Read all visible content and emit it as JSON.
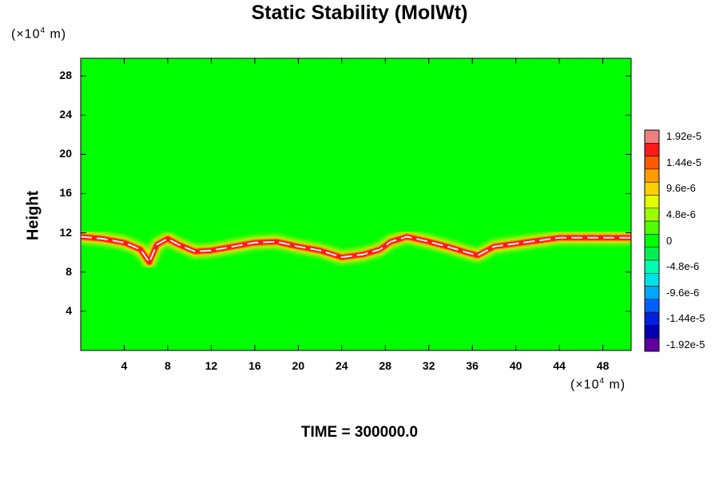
{
  "chart_data": {
    "type": "heatmap",
    "title": "Static Stability (MolWt)",
    "ylabel": "Height",
    "y_unit_prefix": "(×10",
    "y_unit_exp": "4",
    "y_unit_suffix": " m)",
    "x_unit_prefix": "(×10",
    "x_unit_exp": "4",
    "x_unit_suffix": " m)",
    "xlim": [
      0,
      50.6
    ],
    "ylim": [
      0,
      29.8
    ],
    "x_ticks": [
      4,
      8,
      12,
      16,
      20,
      24,
      28,
      32,
      36,
      40,
      44,
      48
    ],
    "y_ticks": [
      4,
      8,
      12,
      16,
      20,
      24,
      28
    ],
    "colorbar": {
      "labels": [
        "1.92e-5",
        "1.44e-5",
        "9.6e-6",
        "4.8e-6",
        "0",
        "-4.8e-6",
        "-9.6e-6",
        "-1.44e-5",
        "-1.92e-5"
      ],
      "colors": [
        "#f08080",
        "#ff1a1a",
        "#ff5a00",
        "#ff9c00",
        "#ffd000",
        "#e0ff00",
        "#9cff00",
        "#50ff00",
        "#00ff00",
        "#00f050",
        "#00ffb0",
        "#00e0e8",
        "#00a8ff",
        "#0060ff",
        "#0020e0",
        "#0000b0",
        "#6000a0"
      ],
      "background": "#00ff00"
    },
    "tropopause_band": [
      [
        0,
        11.6
      ],
      [
        2,
        11.4
      ],
      [
        4,
        11.0
      ],
      [
        5.5,
        10.3
      ],
      [
        6.3,
        9.0
      ],
      [
        7,
        10.8
      ],
      [
        8,
        11.4
      ],
      [
        9,
        10.8
      ],
      [
        10.5,
        10.1
      ],
      [
        12,
        10.2
      ],
      [
        14,
        10.6
      ],
      [
        16,
        11.0
      ],
      [
        18,
        11.1
      ],
      [
        20,
        10.6
      ],
      [
        22,
        10.2
      ],
      [
        24,
        9.5
      ],
      [
        26,
        9.8
      ],
      [
        27.5,
        10.3
      ],
      [
        28.5,
        11.1
      ],
      [
        30,
        11.6
      ],
      [
        32,
        11.1
      ],
      [
        34,
        10.5
      ],
      [
        35.5,
        10.0
      ],
      [
        36.5,
        9.7
      ],
      [
        38,
        10.6
      ],
      [
        40,
        10.9
      ],
      [
        42,
        11.2
      ],
      [
        44,
        11.5
      ],
      [
        46,
        11.5
      ],
      [
        48,
        11.5
      ],
      [
        50.6,
        11.5
      ]
    ],
    "footer": "TIME = 300000.0"
  }
}
